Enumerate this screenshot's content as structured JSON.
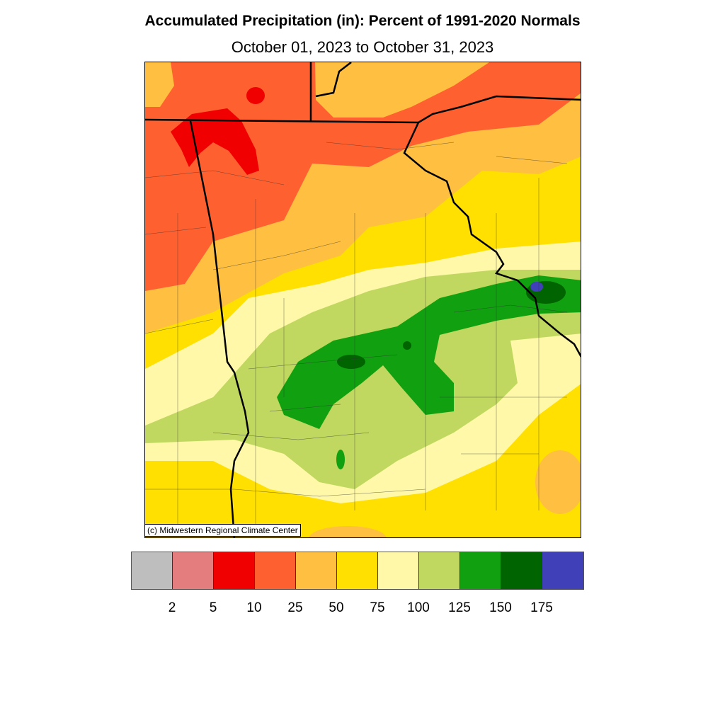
{
  "title": "Accumulated Precipitation (in): Percent of 1991-2020 Normals",
  "subtitle": "October 01, 2023 to October 31, 2023",
  "credit": "(c) Midwestern Regional Climate Center",
  "legend": {
    "colors": [
      "#bebebe",
      "#e47d7d",
      "#f00000",
      "#ff6030",
      "#ffbf40",
      "#ffe000",
      "#fff8a8",
      "#c0d860",
      "#10a010",
      "#006400",
      "#4040b8"
    ],
    "labels": [
      "2",
      "5",
      "10",
      "25",
      "50",
      "75",
      "100",
      "125",
      "150",
      "175"
    ]
  }
}
